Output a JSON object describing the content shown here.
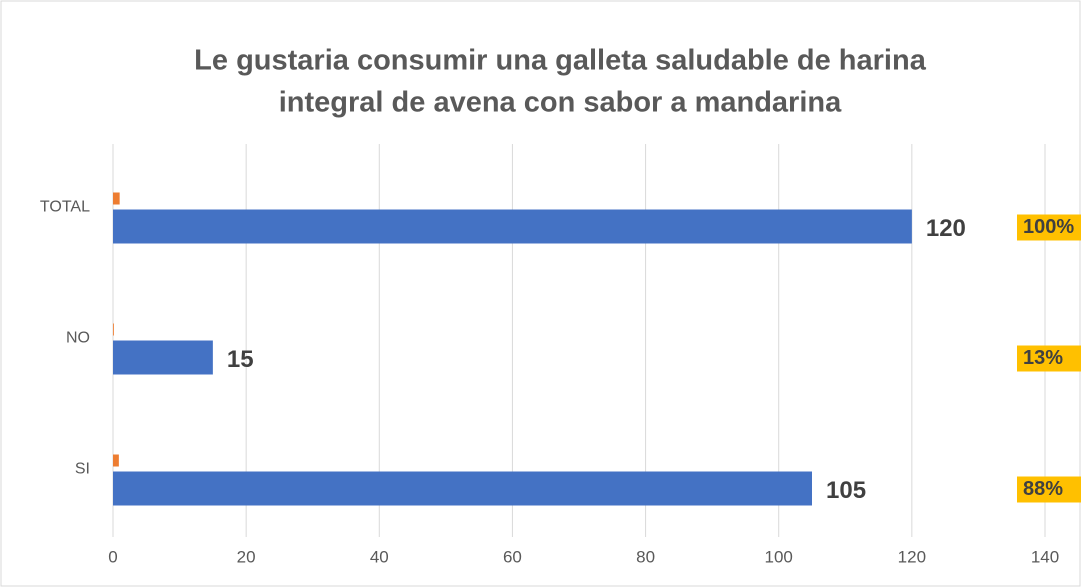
{
  "chart_data": {
    "type": "barh",
    "title": "Le gustaria consumir una galleta saludable de harina",
    "subtitle": "integral de avena con sabor a mandarina",
    "categories": [
      "SI",
      "NO",
      "TOTAL"
    ],
    "series": [
      {
        "color": "#4472c4",
        "values": [
          105,
          15,
          120
        ]
      },
      {
        "color": "#ed7d31",
        "values": [
          0.88,
          0.13,
          1
        ],
        "value_labels": [
          "88%",
          "13%",
          "100%"
        ]
      }
    ],
    "xlim": [
      0,
      140
    ],
    "xticks": [
      0,
      20,
      40,
      60,
      80,
      100,
      120,
      140
    ],
    "grid": true
  }
}
